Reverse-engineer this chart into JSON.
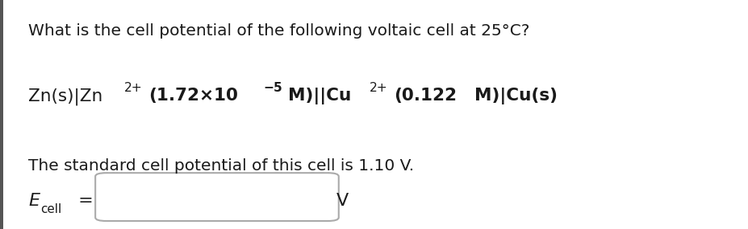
{
  "background_color": "#ffffff",
  "left_bar_color": "#555555",
  "line1": "What is the cell potential of the following voltaic cell at 25°C?",
  "line4": "The standard cell potential of this cell is 1.10 V.",
  "ecell_label": "E",
  "ecell_sub": "cell",
  "V_label": "V",
  "font_size_main": 14.5,
  "font_size_line3": 15.5,
  "font_size_ecell": 16,
  "text_color": "#1a1a1a",
  "box_facecolor": "#ffffff",
  "box_edgecolor": "#aaaaaa",
  "segments": [
    {
      "text": "Zn(s)|Zn",
      "bold": false,
      "super": false
    },
    {
      "text": "2+",
      "bold": false,
      "super": true
    },
    {
      "text": "(1.72×10",
      "bold": true,
      "super": false
    },
    {
      "text": "−5",
      "bold": true,
      "super": true
    },
    {
      "text": "M)||Cu",
      "bold": true,
      "super": false
    },
    {
      "text": "2+",
      "bold": false,
      "super": true
    },
    {
      "text": "(0.122",
      "bold": true,
      "super": false
    },
    {
      "text": "M)|Cu(s)",
      "bold": true,
      "super": false
    }
  ]
}
